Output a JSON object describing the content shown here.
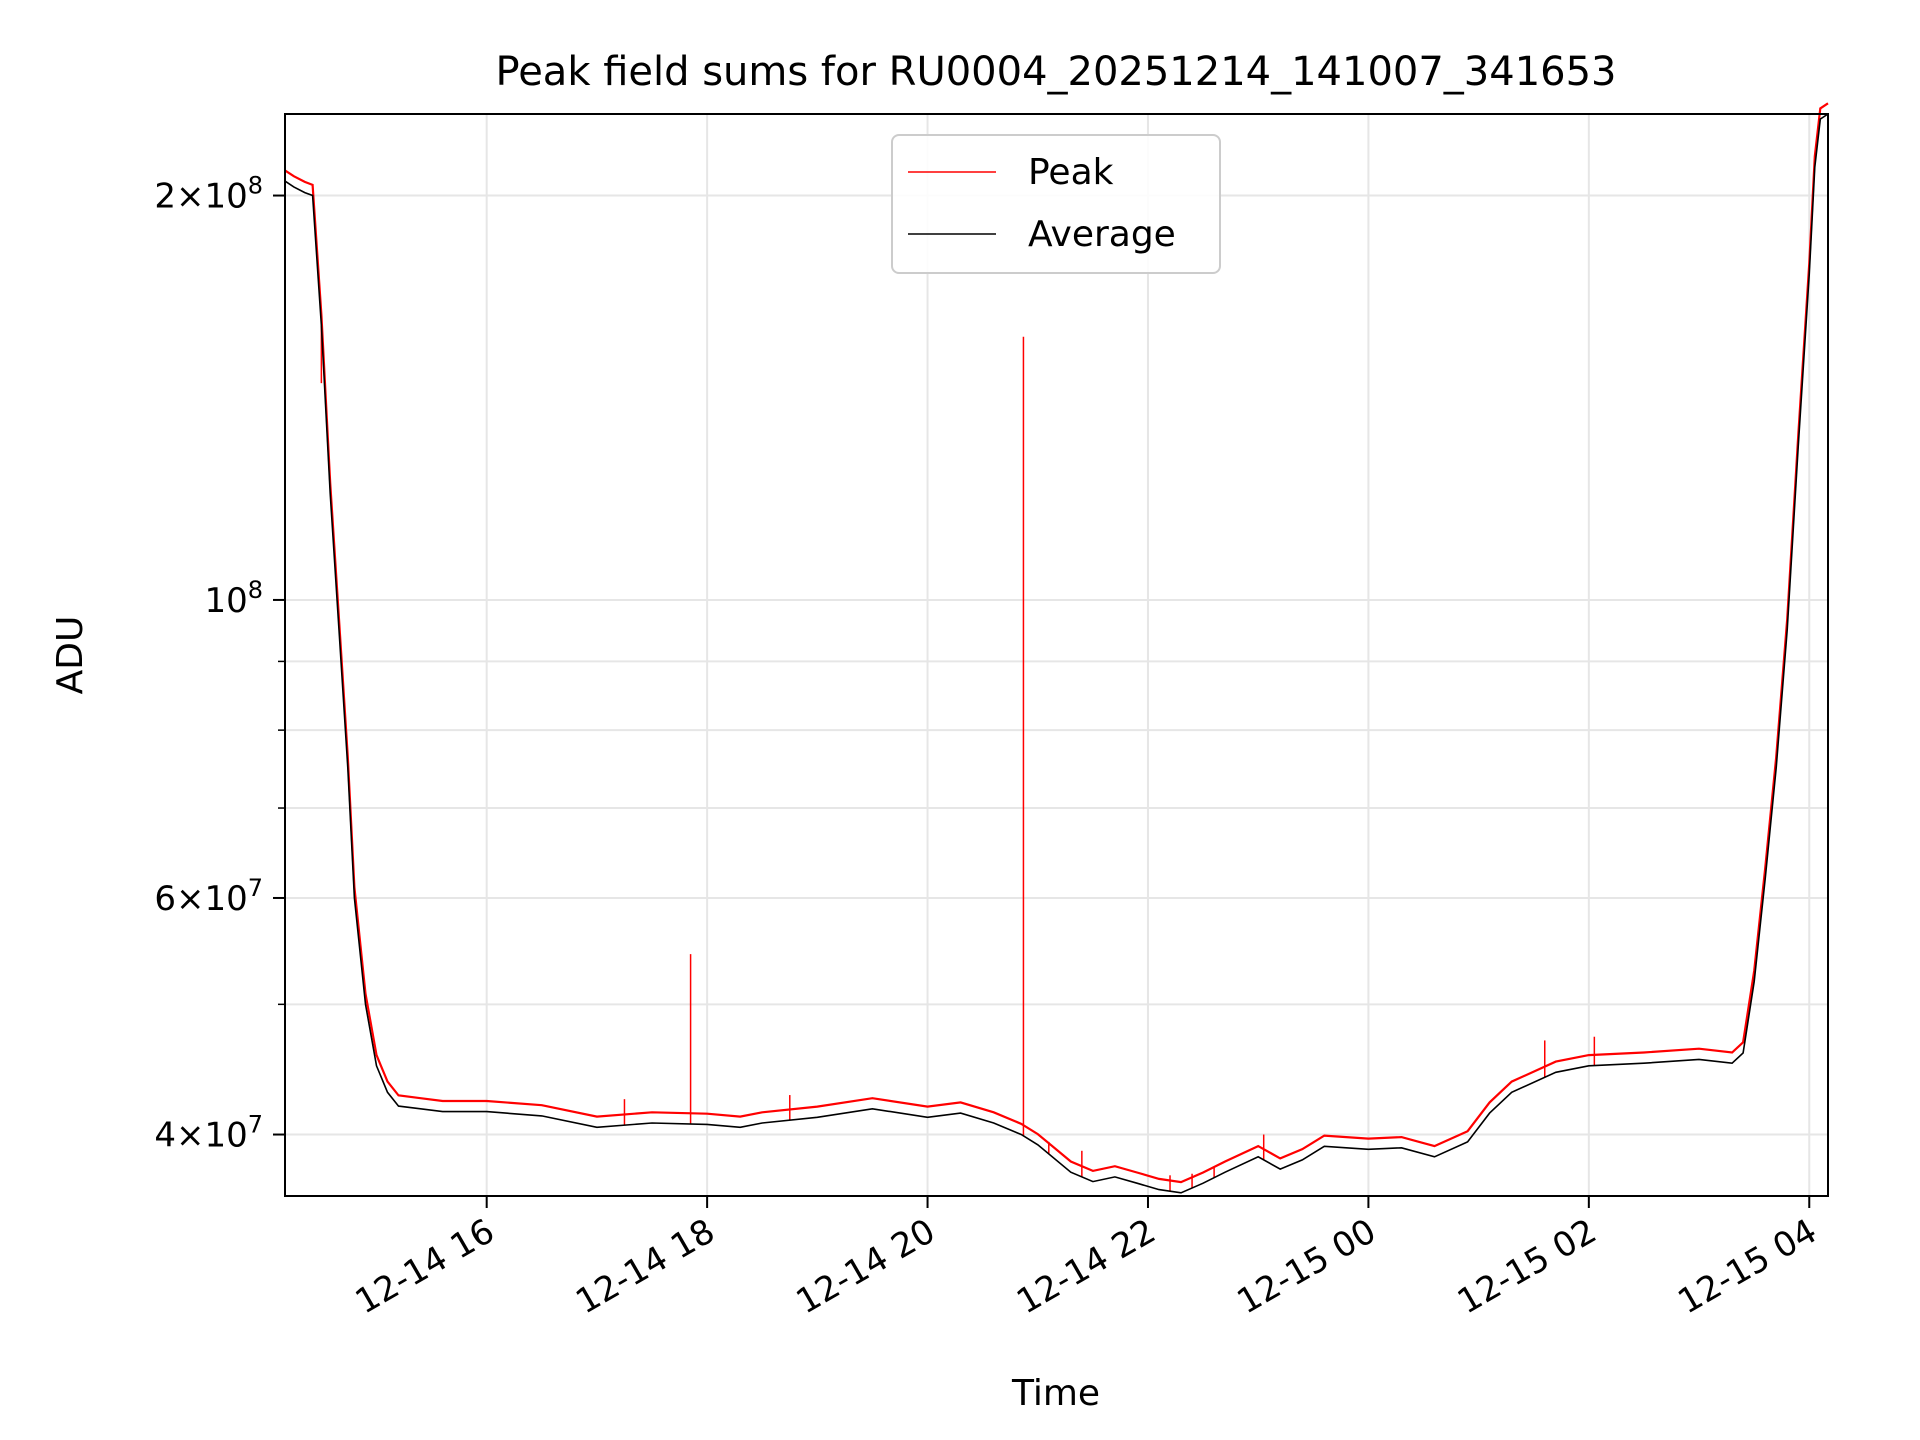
{
  "chart_data": {
    "type": "line",
    "title": "Peak field sums for RU0004_20251214_141007_341653",
    "xlabel": "Time",
    "ylabel": "ADU",
    "yscale": "log",
    "grid": true,
    "legend_position": "top-center",
    "x_unit": "hours since 12-14 00:00",
    "xlim": [
      14.17,
      28.17
    ],
    "ylim": [
      36000000,
      230000000
    ],
    "x_ticks": [
      {
        "value": 16,
        "label": "12-14 16"
      },
      {
        "value": 18,
        "label": "12-14 18"
      },
      {
        "value": 20,
        "label": "12-14 20"
      },
      {
        "value": 22,
        "label": "12-14 22"
      },
      {
        "value": 24,
        "label": "12-15 00"
      },
      {
        "value": 26,
        "label": "12-15 02"
      },
      {
        "value": 28,
        "label": "12-15 04"
      }
    ],
    "y_ticks": [
      {
        "value": 40000000,
        "base": "4",
        "exp": "7"
      },
      {
        "value": 60000000,
        "base": "6",
        "exp": "7"
      },
      {
        "value": 100000000,
        "base": "",
        "exp": "8"
      },
      {
        "value": 200000000,
        "base": "2",
        "exp": "8"
      }
    ],
    "y_minor_ticks": [
      50000000,
      70000000,
      80000000,
      90000000
    ],
    "series": [
      {
        "name": "Average",
        "color": "#000000",
        "x": [
          14.17,
          14.25,
          14.35,
          14.42,
          14.5,
          14.58,
          14.66,
          14.74,
          14.8,
          14.9,
          15.0,
          15.1,
          15.2,
          15.4,
          15.6,
          16.0,
          16.5,
          17.0,
          17.5,
          18.0,
          18.3,
          18.5,
          19.0,
          19.5,
          20.0,
          20.3,
          20.6,
          20.85,
          21.0,
          21.3,
          21.5,
          21.7,
          21.9,
          22.1,
          22.3,
          22.5,
          22.7,
          23.0,
          23.2,
          23.4,
          23.6,
          24.0,
          24.3,
          24.6,
          24.9,
          25.1,
          25.3,
          25.7,
          26.0,
          26.5,
          27.0,
          27.3,
          27.4,
          27.5,
          27.6,
          27.7,
          27.8,
          27.9,
          28.0,
          28.05,
          28.1,
          28.17
        ],
        "y": [
          205000000,
          203000000,
          201000000,
          200000000,
          160000000,
          120000000,
          95000000,
          75000000,
          60000000,
          50000000,
          45000000,
          43000000,
          42000000,
          41800000,
          41600000,
          41600000,
          41300000,
          40500000,
          40800000,
          40700000,
          40500000,
          40800000,
          41200000,
          41800000,
          41200000,
          41500000,
          40800000,
          40000000,
          39300000,
          37500000,
          36900000,
          37200000,
          36800000,
          36400000,
          36200000,
          36800000,
          37500000,
          38500000,
          37700000,
          38300000,
          39200000,
          39000000,
          39100000,
          38500000,
          39500000,
          41500000,
          43000000,
          44500000,
          45000000,
          45200000,
          45500000,
          45200000,
          46000000,
          52000000,
          62000000,
          75000000,
          95000000,
          130000000,
          175000000,
          210000000,
          228000000,
          230000000
        ]
      },
      {
        "name": "Peak",
        "color": "#ff0000",
        "base": "Average",
        "spikes": [
          {
            "x": 14.5,
            "y": 145000000
          },
          {
            "x": 14.58,
            "y": 120000000
          },
          {
            "x": 17.25,
            "y": 42500000
          },
          {
            "x": 17.85,
            "y": 54500000
          },
          {
            "x": 18.75,
            "y": 42800000
          },
          {
            "x": 20.87,
            "y": 157000000
          },
          {
            "x": 21.1,
            "y": 39500000
          },
          {
            "x": 21.4,
            "y": 38900000
          },
          {
            "x": 22.2,
            "y": 37300000
          },
          {
            "x": 22.4,
            "y": 37400000
          },
          {
            "x": 22.6,
            "y": 37800000
          },
          {
            "x": 23.05,
            "y": 40000000
          },
          {
            "x": 25.6,
            "y": 47000000
          },
          {
            "x": 26.05,
            "y": 47300000
          }
        ]
      }
    ]
  }
}
